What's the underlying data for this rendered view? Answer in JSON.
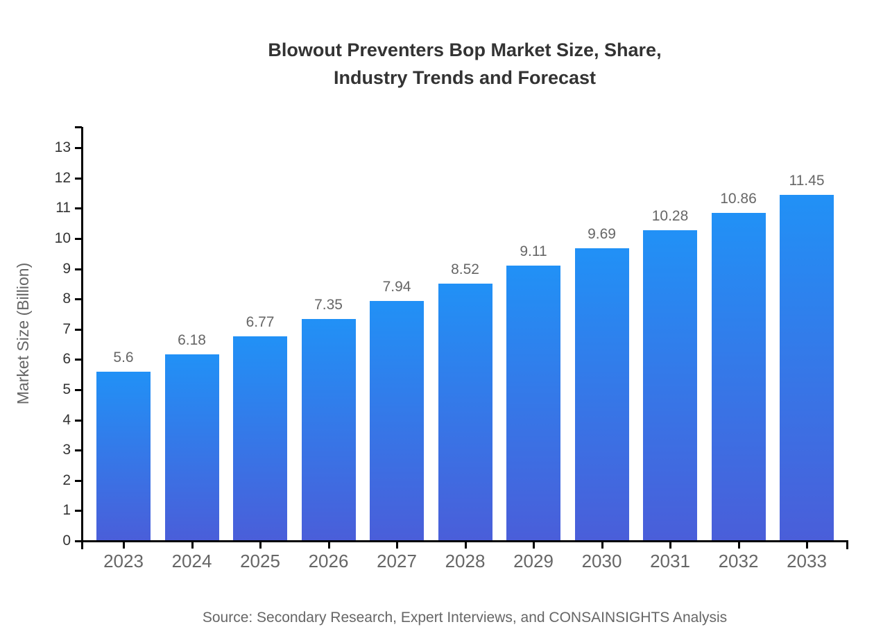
{
  "chart": {
    "title_lines": [
      "Blowout Preventers Bop Market Size, Share,",
      "Industry Trends and Forecast"
    ],
    "source": "Source: Secondary Research, Expert Interviews, and CONSAINSIGHTS Analysis"
  },
  "chart_data": {
    "type": "bar",
    "title": "Blowout Preventers Bop Market Size, Share, Industry Trends and Forecast",
    "categories": [
      "2023",
      "2024",
      "2025",
      "2026",
      "2027",
      "2028",
      "2029",
      "2030",
      "2031",
      "2032",
      "2033"
    ],
    "values": [
      5.6,
      6.18,
      6.77,
      7.35,
      7.94,
      8.52,
      9.11,
      9.69,
      10.28,
      10.86,
      11.45
    ],
    "value_labels": [
      "5.6",
      "6.18",
      "6.77",
      "7.35",
      "7.94",
      "8.52",
      "9.11",
      "9.69",
      "10.28",
      "10.86",
      "11.45"
    ],
    "xlabel": "",
    "ylabel": "Market Size (Billion)",
    "ylim": [
      0,
      13
    ],
    "ytick_step": 1,
    "grid": false,
    "legend": false,
    "colors": {
      "bar_gradient_top": "#2191F6",
      "bar_gradient_bottom": "#4A5ED9",
      "axis": "#000000",
      "y_tick_label": "#333333",
      "x_tick_label": "#666666",
      "value_label": "#666666",
      "title": "#333333",
      "source": "#666666"
    }
  }
}
